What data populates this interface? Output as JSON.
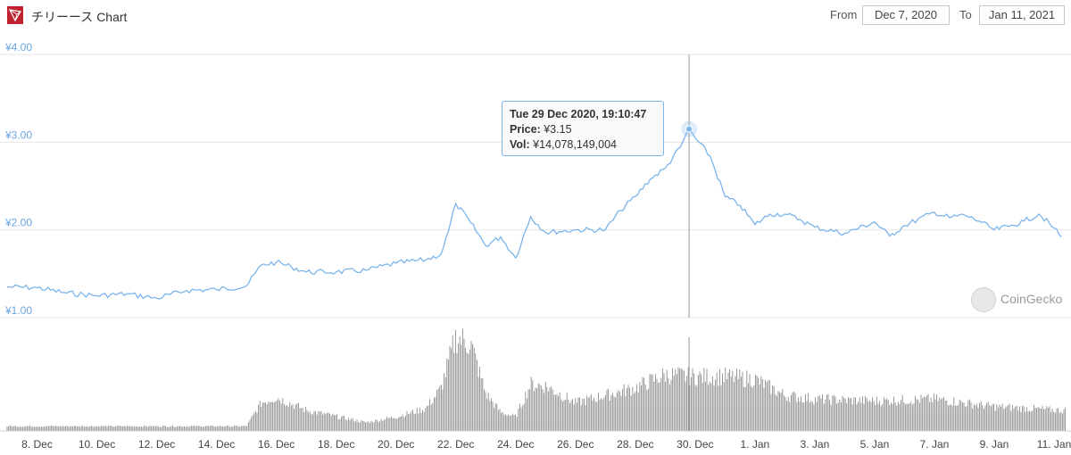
{
  "header": {
    "title": "チリーース Chart",
    "from_label": "From",
    "from_value": "Dec 7, 2020",
    "to_label": "To",
    "to_value": "Jan 11, 2021"
  },
  "tooltip": {
    "date": "Tue 29 Dec 2020, 19:10:47",
    "price_label": "Price:",
    "price_value": "¥3.15",
    "vol_label": "Vol:",
    "vol_value": "¥14,078,149,004"
  },
  "watermark": {
    "text": "CoinGecko"
  },
  "colors": {
    "line": "#7cb5ec",
    "volume": "#8c8c8c",
    "grid": "#e6e6e6",
    "crosshair": "#999999",
    "logo": "#c0212f"
  },
  "chart_data": {
    "type": "line",
    "y_tick_labels": [
      "¥1.00",
      "¥2.00",
      "¥3.00",
      "¥4.00"
    ],
    "ylim": [
      1.0,
      4.0
    ],
    "grid": true,
    "x_tick_labels": [
      "8. Dec",
      "10. Dec",
      "12. Dec",
      "14. Dec",
      "16. Dec",
      "18. Dec",
      "20. Dec",
      "22. Dec",
      "24. Dec",
      "26. Dec",
      "28. Dec",
      "30. Dec",
      "1. Jan",
      "3. Jan",
      "5. Jan",
      "7. Jan",
      "9. Jan",
      "11. Jan"
    ],
    "x_start": "2020-12-07",
    "x_end": "2021-01-11",
    "hover": {
      "date": "2020-12-29T19:10",
      "price": 3.15
    },
    "series": [
      {
        "values": [
          [
            "2020-12-07T00:00",
            1.35
          ],
          [
            "2020-12-08T00:00",
            1.34
          ],
          [
            "2020-12-09T00:00",
            1.28
          ],
          [
            "2020-12-10T00:00",
            1.25
          ],
          [
            "2020-12-11T00:00",
            1.27
          ],
          [
            "2020-12-12T00:00",
            1.22
          ],
          [
            "2020-12-13T00:00",
            1.31
          ],
          [
            "2020-12-14T00:00",
            1.32
          ],
          [
            "2020-12-15T00:00",
            1.36
          ],
          [
            "2020-12-15T12:00",
            1.6
          ],
          [
            "2020-12-16T00:00",
            1.63
          ],
          [
            "2020-12-16T12:00",
            1.58
          ],
          [
            "2020-12-17T00:00",
            1.52
          ],
          [
            "2020-12-18T00:00",
            1.52
          ],
          [
            "2020-12-19T00:00",
            1.54
          ],
          [
            "2020-12-20T00:00",
            1.62
          ],
          [
            "2020-12-21T00:00",
            1.66
          ],
          [
            "2020-12-21T12:00",
            1.72
          ],
          [
            "2020-12-21T18:00",
            1.98
          ],
          [
            "2020-12-22T00:00",
            2.3
          ],
          [
            "2020-12-22T12:00",
            2.08
          ],
          [
            "2020-12-23T00:00",
            1.82
          ],
          [
            "2020-12-23T12:00",
            1.92
          ],
          [
            "2020-12-24T00:00",
            1.68
          ],
          [
            "2020-12-24T12:00",
            2.15
          ],
          [
            "2020-12-25T00:00",
            1.97
          ],
          [
            "2020-12-26T00:00",
            2.0
          ],
          [
            "2020-12-27T00:00",
            2.0
          ],
          [
            "2020-12-27T12:00",
            2.22
          ],
          [
            "2020-12-28T00:00",
            2.38
          ],
          [
            "2020-12-28T12:00",
            2.58
          ],
          [
            "2020-12-29T00:00",
            2.7
          ],
          [
            "2020-12-29T12:00",
            2.94
          ],
          [
            "2020-12-29T19:10",
            3.15
          ],
          [
            "2020-12-30T00:00",
            3.05
          ],
          [
            "2020-12-30T12:00",
            2.84
          ],
          [
            "2020-12-31T00:00",
            2.38
          ],
          [
            "2020-12-31T12:00",
            2.28
          ],
          [
            "2021-01-01T00:00",
            2.06
          ],
          [
            "2021-01-01T12:00",
            2.18
          ],
          [
            "2021-01-02T00:00",
            2.18
          ],
          [
            "2021-01-02T12:00",
            2.12
          ],
          [
            "2021-01-03T00:00",
            2.03
          ],
          [
            "2021-01-04T00:00",
            1.96
          ],
          [
            "2021-01-05T00:00",
            2.09
          ],
          [
            "2021-01-05T12:00",
            1.93
          ],
          [
            "2021-01-06T00:00",
            2.05
          ],
          [
            "2021-01-07T00:00",
            2.2
          ],
          [
            "2021-01-07T12:00",
            2.14
          ],
          [
            "2021-01-08T00:00",
            2.17
          ],
          [
            "2021-01-08T12:00",
            2.1
          ],
          [
            "2021-01-09T00:00",
            2.0
          ],
          [
            "2021-01-09T12:00",
            2.04
          ],
          [
            "2021-01-10T00:00",
            2.1
          ],
          [
            "2021-01-10T12:00",
            2.18
          ],
          [
            "2021-01-11T00:00",
            2.02
          ],
          [
            "2021-01-11T06:00",
            1.92
          ]
        ]
      }
    ],
    "volume_series": {
      "relative_to_max": true,
      "values": [
        [
          "2020-12-07",
          0.05
        ],
        [
          "2020-12-15",
          0.05
        ],
        [
          "2020-12-15T12:00",
          0.3
        ],
        [
          "2020-12-16",
          0.36
        ],
        [
          "2020-12-17",
          0.22
        ],
        [
          "2020-12-19",
          0.09
        ],
        [
          "2020-12-20",
          0.15
        ],
        [
          "2020-12-21",
          0.24
        ],
        [
          "2020-12-21T12:00",
          0.45
        ],
        [
          "2020-12-22",
          1.0
        ],
        [
          "2020-12-22T12:00",
          0.93
        ],
        [
          "2020-12-23",
          0.4
        ],
        [
          "2020-12-23T12:00",
          0.2
        ],
        [
          "2020-12-24",
          0.15
        ],
        [
          "2020-12-24T12:00",
          0.5
        ],
        [
          "2020-12-25",
          0.48
        ],
        [
          "2020-12-26",
          0.3
        ],
        [
          "2020-12-27",
          0.38
        ],
        [
          "2020-12-28",
          0.46
        ],
        [
          "2020-12-29",
          0.6
        ],
        [
          "2020-12-30",
          0.58
        ],
        [
          "2020-12-31",
          0.58
        ],
        [
          "2021-01-01",
          0.55
        ],
        [
          "2021-01-02",
          0.38
        ],
        [
          "2021-01-03",
          0.34
        ],
        [
          "2021-01-05",
          0.32
        ],
        [
          "2021-01-07",
          0.34
        ],
        [
          "2021-01-08",
          0.3
        ],
        [
          "2021-01-09",
          0.26
        ],
        [
          "2021-01-11T06:00",
          0.22
        ]
      ]
    }
  }
}
